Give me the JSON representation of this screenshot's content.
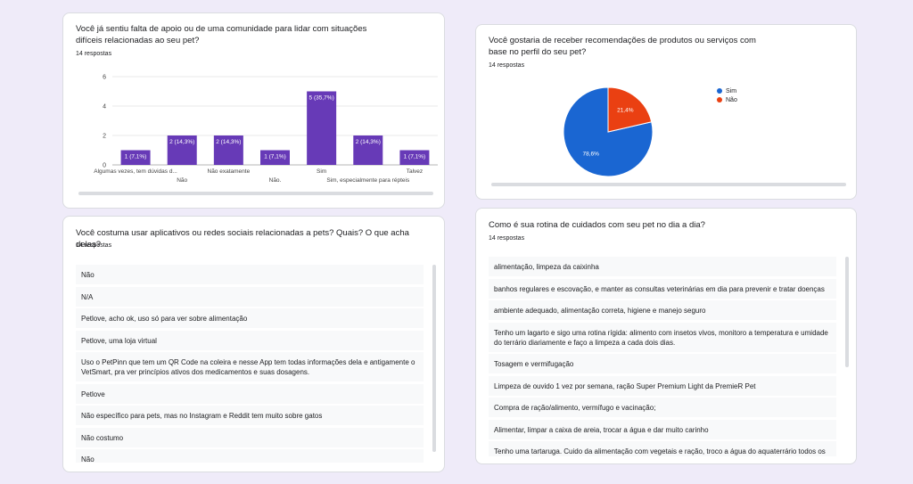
{
  "card1": {
    "title": "Você já sentiu falta de apoio ou de uma comunidade para lidar com situações difíceis relacionadas ao seu pet?",
    "count": "14 respostas"
  },
  "card2": {
    "title": "Você gostaria de receber recomendações de produtos ou serviços com base no perfil do seu pet?",
    "count": "14 respostas"
  },
  "card3": {
    "title": "Você costuma usar aplicativos ou redes sociais relacionadas a pets? Quais? O que acha delas?",
    "count": "14 respostas",
    "responses": [
      "Não",
      "N/A",
      "Petlove, acho ok, uso só para ver sobre alimentação",
      "Petlove, uma loja virtual",
      "Uso o PetPinn que tem um QR Code na coleira e nesse App tem todas informações dela e antigamente o VetSmart, pra ver princípios ativos dos medicamentos e suas dosagens.",
      "Petlove",
      "Não específico para pets, mas no Instagram e Reddit tem muito sobre gatos",
      "Não costumo",
      "Não"
    ]
  },
  "card4": {
    "title": "Como é sua rotina de cuidados com seu pet no dia a dia?",
    "count": "14 respostas",
    "responses": [
      "alimentação, limpeza da caixinha",
      "banhos regulares e escovação, e manter as consultas veterinárias em dia para prevenir e tratar doenças",
      "ambiente adequado, alimentação correta, higiene e manejo seguro",
      "Tenho um lagarto e sigo uma rotina rígida: alimento com insetos vivos, monitoro a temperatura e umidade do terrário diariamente e faço a limpeza a cada dois dias.",
      "Tosagem e vermifugação",
      "Limpeza de ouvido 1 vez por semana, ração Super Premium Light da PremieR Pet",
      "Compra de ração/alimento, vermífugo e vacinação;",
      "Alimentar, limpar a caixa de areia, trocar a água e dar muito carinho",
      "Tenho uma tartaruga. Cuido da alimentação com vegetais e ração, troco a água do aquaterrário todos os"
    ]
  },
  "chart_data": [
    {
      "type": "bar",
      "color": "#673ab7",
      "categories": [
        "Algumas vezes, tem dúvidas d...",
        "Não",
        "Não exatamente",
        "Não.",
        "Sim",
        "Sim, especialmente para répteis",
        "Talvez"
      ],
      "values": [
        1,
        2,
        2,
        1,
        5,
        2,
        1
      ],
      "data_labels": [
        "1 (7,1%)",
        "2 (14,3%)",
        "2 (14,3%)",
        "1 (7,1%)",
        "5 (35,7%)",
        "2 (14,3%)",
        "1 (7,1%)"
      ],
      "yticks": [
        "0",
        "2",
        "4",
        "6"
      ],
      "ylim": [
        0,
        6
      ]
    },
    {
      "type": "pie",
      "labels": [
        "Sim",
        "Não"
      ],
      "values": [
        78.6,
        21.4
      ],
      "data_labels": [
        "78,6%",
        "21,4%"
      ],
      "colors": [
        "#1a66d2",
        "#ea4012"
      ]
    }
  ]
}
